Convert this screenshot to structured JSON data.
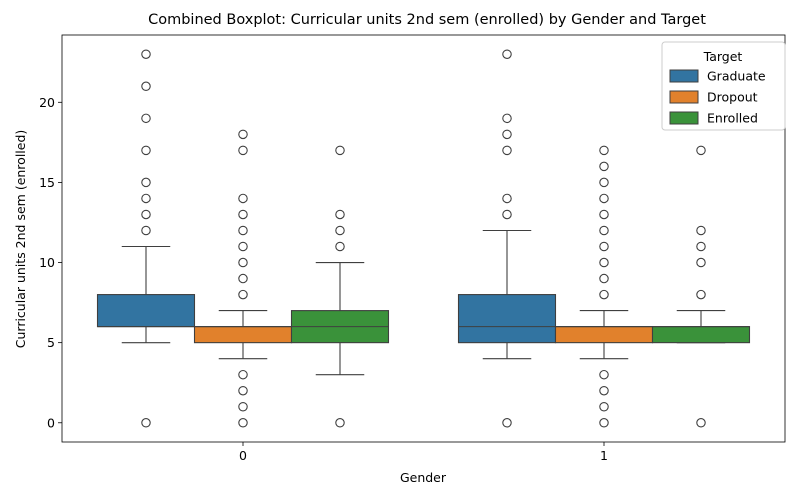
{
  "chart_data": {
    "type": "boxplot",
    "title": "Combined Boxplot: Curricular units 2nd sem (enrolled) by Gender and Target",
    "xlabel": "Gender",
    "ylabel": "Curricular units 2nd sem (enrolled)",
    "categories": [
      "0",
      "1"
    ],
    "ylim": [
      -1.2,
      24.2
    ],
    "yticks": [
      "0",
      "5",
      "10",
      "15",
      "20"
    ],
    "grid": false,
    "legend": {
      "title": "Target",
      "placement": "top-right"
    },
    "series": [
      {
        "name": "Graduate",
        "color": "#3274a1",
        "boxes": [
          {
            "whisker_low": 5,
            "q1": 6,
            "median": 6,
            "q3": 8,
            "whisker_high": 11,
            "outliers": [
              0,
              12,
              13,
              14,
              15,
              17,
              19,
              21,
              23
            ]
          },
          {
            "whisker_low": 4,
            "q1": 5,
            "median": 6,
            "q3": 8,
            "whisker_high": 12,
            "outliers": [
              0,
              13,
              14,
              17,
              18,
              19,
              23
            ]
          }
        ]
      },
      {
        "name": "Dropout",
        "color": "#e1812c",
        "boxes": [
          {
            "whisker_low": 4,
            "q1": 5,
            "median": 6,
            "q3": 6,
            "whisker_high": 7,
            "outliers": [
              0,
              1,
              2,
              3,
              8,
              9,
              10,
              11,
              12,
              13,
              14,
              17,
              18
            ]
          },
          {
            "whisker_low": 4,
            "q1": 5,
            "median": 6,
            "q3": 6,
            "whisker_high": 7,
            "outliers": [
              0,
              1,
              2,
              3,
              8,
              9,
              10,
              11,
              12,
              13,
              14,
              15,
              16,
              17
            ]
          }
        ]
      },
      {
        "name": "Enrolled",
        "color": "#3a923a",
        "boxes": [
          {
            "whisker_low": 3,
            "q1": 5,
            "median": 6,
            "q3": 7,
            "whisker_high": 10,
            "outliers": [
              0,
              11,
              12,
              13,
              17
            ]
          },
          {
            "whisker_low": 5,
            "q1": 5,
            "median": 6,
            "q3": 6,
            "whisker_high": 7,
            "outliers": [
              0,
              8,
              10,
              11,
              12,
              17
            ]
          }
        ]
      }
    ]
  }
}
